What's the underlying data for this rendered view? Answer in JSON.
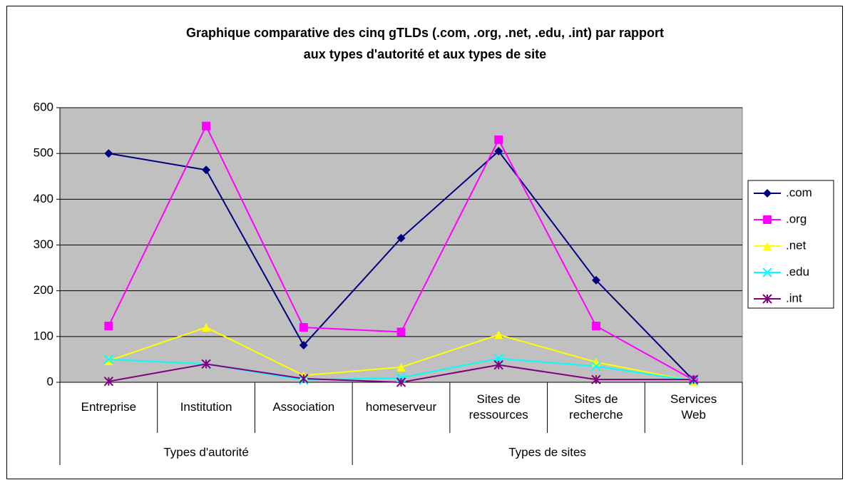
{
  "chart_data": {
    "type": "line",
    "title": "Graphique comparative des cinq gTLDs (.com, .org, .net, .edu, .int) par rapport\naux types d'autorité et aux types de site",
    "category_groups": [
      {
        "name": "Types d'autorité",
        "categories": [
          "Entreprise",
          "Institution",
          "Association"
        ]
      },
      {
        "name": "Types de sites",
        "categories": [
          "homeserveur",
          "Sites de\nressources",
          "Sites de\nrecherche",
          "Services\nWeb"
        ]
      }
    ],
    "series": [
      {
        "name": ".com",
        "color": "#000080",
        "marker": "diamond",
        "values": [
          500,
          464,
          81,
          315,
          505,
          223,
          4
        ]
      },
      {
        "name": ".org",
        "color": "#ff00ff",
        "marker": "square",
        "values": [
          123,
          560,
          120,
          110,
          530,
          123,
          5
        ]
      },
      {
        "name": ".net",
        "color": "#ffff00",
        "marker": "triangle",
        "values": [
          47,
          120,
          15,
          33,
          104,
          44,
          2
        ]
      },
      {
        "name": ".edu",
        "color": "#00ffff",
        "marker": "x",
        "values": [
          50,
          40,
          5,
          10,
          52,
          35,
          3
        ]
      },
      {
        "name": ".int",
        "color": "#800080",
        "marker": "star",
        "values": [
          2,
          40,
          8,
          0,
          38,
          6,
          6
        ]
      }
    ],
    "ylim": [
      0,
      600
    ],
    "yticks": [
      0,
      100,
      200,
      300,
      400,
      500,
      600
    ],
    "grid": true,
    "plot_background": "#c0c0c0",
    "legend": "right"
  }
}
